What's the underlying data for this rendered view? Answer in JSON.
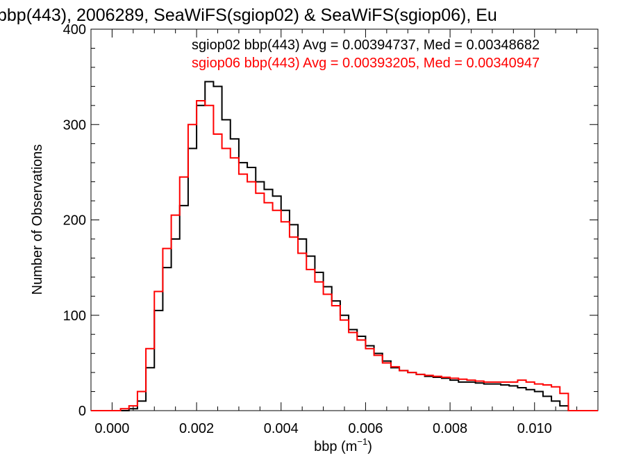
{
  "chart_data": {
    "type": "histogram-step",
    "title": "bbp(443), 2006289, SeaWiFS(sgiop02) & SeaWiFS(sgiop06), Eu",
    "xlabel_main": "bbp (m",
    "xlabel_sup": "−1",
    "xlabel_close": ")",
    "ylabel": "Number of Observations",
    "xlim": [
      -0.0005,
      0.0115
    ],
    "ylim": [
      0,
      400
    ],
    "x_ticks": [
      "0.000",
      "0.002",
      "0.004",
      "0.006",
      "0.008",
      "0.010"
    ],
    "x_tick_values": [
      0.0,
      0.002,
      0.004,
      0.006,
      0.008,
      0.01
    ],
    "y_ticks": [
      "0",
      "100",
      "200",
      "300",
      "400"
    ],
    "y_tick_values": [
      0,
      100,
      200,
      300,
      400
    ],
    "grid": false,
    "annotations": [
      {
        "text": "sgiop02 bbp(443) Avg = 0.00394737, Med = 0.00348682",
        "color": "#000000"
      },
      {
        "text": "sgiop06 bbp(443) Avg = 0.00393205, Med = 0.00340947",
        "color": "#ff0000"
      }
    ],
    "series": [
      {
        "color": "#000000",
        "x": [
          0.0003,
          0.0005,
          0.0007,
          0.0009,
          0.0011,
          0.0013,
          0.0015,
          0.0017,
          0.0019,
          0.0021,
          0.0023,
          0.0025,
          0.0027,
          0.0029,
          0.0031,
          0.0033,
          0.0035,
          0.0037,
          0.0039,
          0.0041,
          0.0043,
          0.0045,
          0.0047,
          0.0049,
          0.0051,
          0.0053,
          0.0055,
          0.0057,
          0.0059,
          0.0061,
          0.0063,
          0.0065,
          0.0067,
          0.0069,
          0.0071,
          0.0073,
          0.0075,
          0.0077,
          0.0079,
          0.0081,
          0.0083,
          0.0085,
          0.0087,
          0.0089,
          0.0091,
          0.0093,
          0.0095,
          0.0097,
          0.0099,
          0.0101,
          0.0103,
          0.0105,
          0.0107,
          0.0109
        ],
        "y": [
          0,
          2,
          10,
          45,
          105,
          150,
          180,
          215,
          275,
          320,
          345,
          340,
          305,
          285,
          260,
          255,
          240,
          232,
          225,
          210,
          195,
          180,
          162,
          145,
          130,
          115,
          100,
          85,
          78,
          68,
          60,
          52,
          45,
          42,
          40,
          38,
          36,
          35,
          34,
          32,
          30,
          30,
          29,
          28,
          28,
          27,
          26,
          24,
          22,
          20,
          15,
          10,
          5,
          0
        ]
      },
      {
        "color": "#ff0000",
        "x": [
          0.0003,
          0.0005,
          0.0007,
          0.0009,
          0.0011,
          0.0013,
          0.0015,
          0.0017,
          0.0019,
          0.0021,
          0.0023,
          0.0025,
          0.0027,
          0.0029,
          0.0031,
          0.0033,
          0.0035,
          0.0037,
          0.0039,
          0.0041,
          0.0043,
          0.0045,
          0.0047,
          0.0049,
          0.0051,
          0.0053,
          0.0055,
          0.0057,
          0.0059,
          0.0061,
          0.0063,
          0.0065,
          0.0067,
          0.0069,
          0.0071,
          0.0073,
          0.0075,
          0.0077,
          0.0079,
          0.0081,
          0.0083,
          0.0085,
          0.0087,
          0.0089,
          0.0091,
          0.0093,
          0.0095,
          0.0097,
          0.0099,
          0.0101,
          0.0103,
          0.0105,
          0.0107,
          0.0109
        ],
        "y": [
          2,
          5,
          20,
          65,
          125,
          170,
          205,
          245,
          300,
          325,
          320,
          290,
          275,
          265,
          248,
          240,
          228,
          218,
          210,
          198,
          182,
          165,
          148,
          135,
          122,
          110,
          95,
          82,
          74,
          65,
          58,
          50,
          46,
          42,
          40,
          38,
          37,
          36,
          35,
          34,
          33,
          32,
          31,
          30,
          30,
          30,
          30,
          32,
          30,
          28,
          27,
          25,
          18,
          0
        ]
      }
    ]
  }
}
